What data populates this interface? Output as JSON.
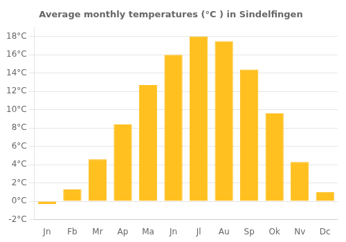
{
  "chart_data": {
    "type": "bar",
    "title": "Average monthly temperatures (°C ) in Sindelfingen",
    "categories": [
      "Jn",
      "Fb",
      "Mr",
      "Ap",
      "Ma",
      "Jn",
      "Jl",
      "Au",
      "Sp",
      "Ok",
      "Nv",
      "Dc"
    ],
    "values": [
      -0.3,
      1.3,
      4.6,
      8.4,
      12.7,
      16.0,
      18.0,
      17.5,
      14.4,
      9.6,
      4.3,
      1.0
    ],
    "color": "#FFC020",
    "ylim": [
      -2,
      19
    ],
    "yticks": [
      {
        "value": -2,
        "label": "-2°C"
      },
      {
        "value": 0,
        "label": "0°C"
      },
      {
        "value": 2,
        "label": "2°C"
      },
      {
        "value": 4,
        "label": "4°C"
      },
      {
        "value": 6,
        "label": "6°C"
      },
      {
        "value": 8,
        "label": "8°C"
      },
      {
        "value": 10,
        "label": "10°C"
      },
      {
        "value": 12,
        "label": "12°C"
      },
      {
        "value": 14,
        "label": "14°C"
      },
      {
        "value": 16,
        "label": "16°C"
      },
      {
        "value": 18,
        "label": "18°C"
      }
    ],
    "grid": true
  }
}
